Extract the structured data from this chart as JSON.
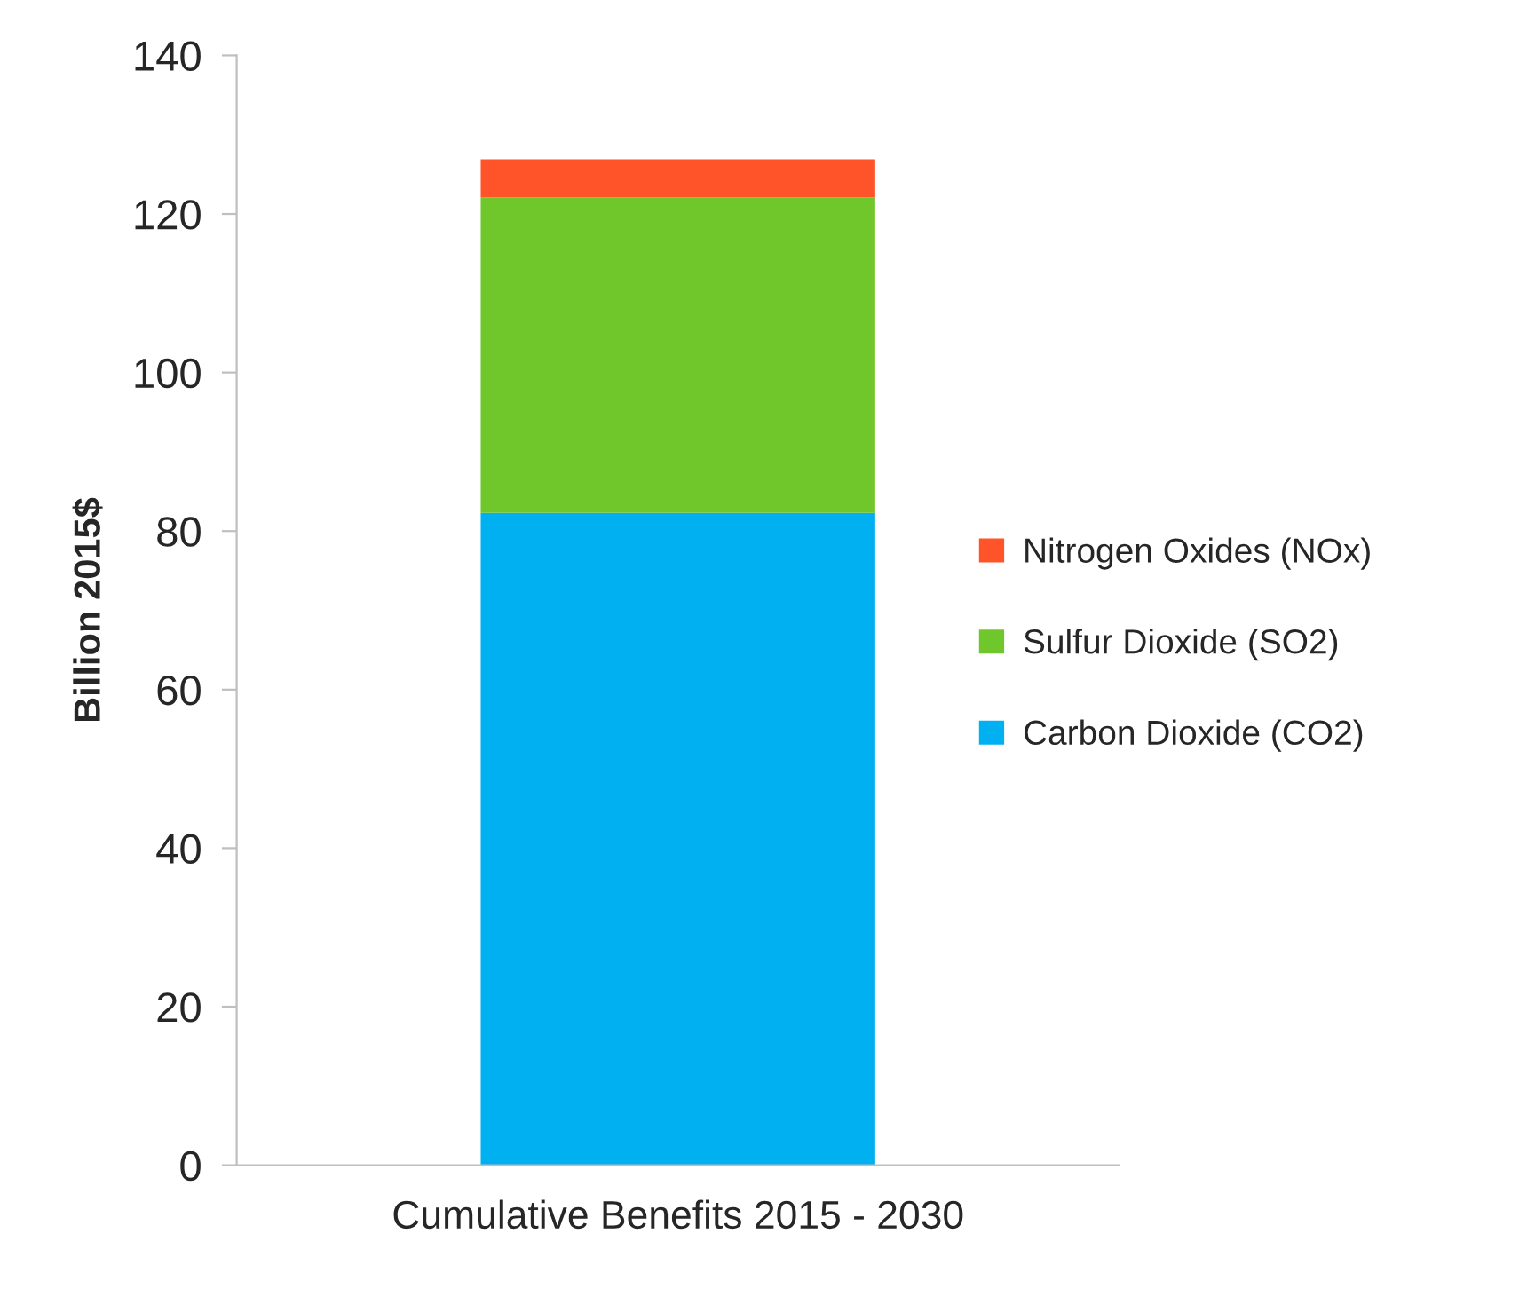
{
  "chart_data": {
    "type": "bar",
    "stacked": true,
    "ylabel": "Billion 2015$",
    "categories": [
      "Cumulative Benefits 2015 - 2030"
    ],
    "series": [
      {
        "name": "Carbon Dioxide (CO2)",
        "color": "#00b0f0",
        "values": [
          82.3
        ]
      },
      {
        "name": "Sulfur Dioxide (SO2)",
        "color": "#70c72c",
        "values": [
          39.8
        ]
      },
      {
        "name": "Nitrogen Oxides (NOx)",
        "color": "#ff5329",
        "values": [
          4.8
        ]
      }
    ],
    "ylim": [
      0,
      140
    ],
    "yticks": [
      0,
      20,
      40,
      60,
      80,
      100,
      120,
      140
    ],
    "grid": false,
    "legend": "right"
  }
}
